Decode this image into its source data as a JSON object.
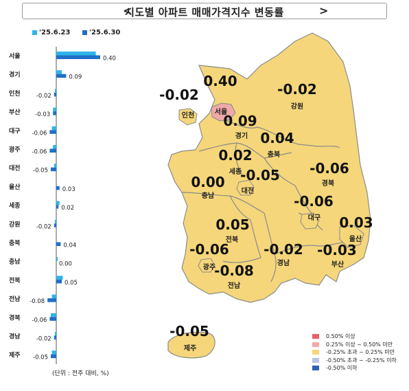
{
  "title": "시도별 아파트 매매가격지수 변동률",
  "arrows": {
    "left": "<",
    "right": ">"
  },
  "colors": {
    "prev": "#2fb4e8",
    "curr": "#1f6fc7",
    "land": "#f5d67a",
    "seoul": "#f0a8a8",
    "stroke": "#8a8a8a"
  },
  "unit_note": "(단위 : 전주 대비, %)",
  "chart_data": {
    "type": "bar",
    "orientation": "horizontal",
    "categories": [
      "서울",
      "경기",
      "인천",
      "부산",
      "대구",
      "광주",
      "대전",
      "울산",
      "세종",
      "강원",
      "충북",
      "충남",
      "전북",
      "전남",
      "경북",
      "경남",
      "제주"
    ],
    "series": [
      {
        "name": "'25.6.23",
        "values": [
          0.36,
          0.05,
          -0.01,
          -0.03,
          -0.04,
          -0.03,
          -0.02,
          0.0,
          0.03,
          -0.01,
          0.0,
          0.01,
          0.06,
          -0.04,
          -0.05,
          -0.01,
          -0.04
        ]
      },
      {
        "name": "'25.6.30",
        "values": [
          0.4,
          0.09,
          -0.02,
          -0.03,
          -0.06,
          -0.06,
          -0.05,
          0.03,
          0.02,
          -0.02,
          0.04,
          0.0,
          0.05,
          -0.08,
          -0.06,
          -0.02,
          -0.05
        ]
      }
    ],
    "value_labels": [
      "0.40",
      "0.09",
      "-0.02",
      "-0.03",
      "-0.06",
      "-0.06",
      "-0.05",
      "0.03",
      "0.02",
      "-0.02",
      "0.04",
      "0.00",
      "0.05",
      "-0.08",
      "-0.06",
      "-0.02",
      "-0.05"
    ],
    "legend_position": "top-left"
  },
  "map_regions": [
    {
      "name": "서울",
      "value": "0.40"
    },
    {
      "name": "인천",
      "value": "-0.02"
    },
    {
      "name": "경기",
      "value": "0.09"
    },
    {
      "name": "강원",
      "value": "-0.02"
    },
    {
      "name": "충북",
      "value": "0.04"
    },
    {
      "name": "세종",
      "value": "0.02"
    },
    {
      "name": "충남",
      "value": "0.00"
    },
    {
      "name": "대전",
      "value": "-0.05"
    },
    {
      "name": "경북",
      "value": "-0.06"
    },
    {
      "name": "대구",
      "value": "-0.06"
    },
    {
      "name": "전북",
      "value": "0.05"
    },
    {
      "name": "울산",
      "value": "0.03"
    },
    {
      "name": "광주",
      "value": "-0.06"
    },
    {
      "name": "경남",
      "value": "-0.02"
    },
    {
      "name": "부산",
      "value": "-0.03"
    },
    {
      "name": "전남",
      "value": "-0.08"
    },
    {
      "name": "제주",
      "value": "-0.05"
    }
  ],
  "map_legend": [
    {
      "label": "0.50% 이상",
      "color": "#e8606a"
    },
    {
      "label": "0.25% 이상 ~ 0.50% 미만",
      "color": "#f2a9a9"
    },
    {
      "label": "-0.25% 초과 ~ 0.25% 미만",
      "color": "#f5d67a"
    },
    {
      "label": "-0.50% 초과 ~ -0.25% 이하",
      "color": "#b7c2e6"
    },
    {
      "label": "-0.50% 이하",
      "color": "#2f62b5"
    }
  ]
}
